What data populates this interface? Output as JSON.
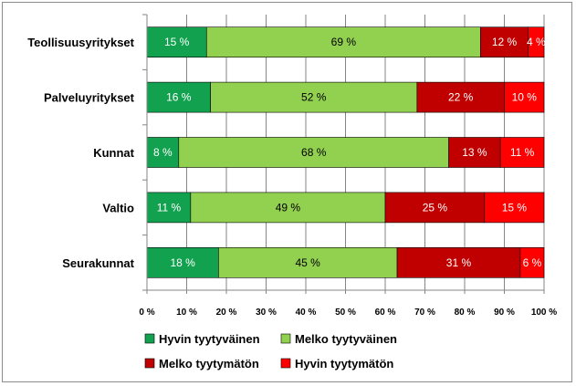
{
  "chart_data": {
    "type": "bar",
    "orientation": "horizontal",
    "stacked": true,
    "percent_stacked": true,
    "categories": [
      "Teollisuusyritykset",
      "Palveluyritykset",
      "Kunnat",
      "Valtio",
      "Seurakunnat"
    ],
    "series": [
      {
        "name": "Hyvin tyytyväinen",
        "color": "#12a24f",
        "values": [
          15,
          16,
          8,
          11,
          18
        ],
        "labels": [
          "15 %",
          "16 %",
          "8 %",
          "11 %",
          "18 %"
        ]
      },
      {
        "name": "Melko tyytyväinen",
        "color": "#92d050",
        "values": [
          69,
          52,
          68,
          49,
          45
        ],
        "labels": [
          "69 %",
          "52 %",
          "68 %",
          "49 %",
          "45 %"
        ]
      },
      {
        "name": "Melko tyytymätön",
        "color": "#c00000",
        "values": [
          12,
          22,
          13,
          25,
          31
        ],
        "labels": [
          "12 %",
          "22 %",
          "13 %",
          "25 %",
          "31 %"
        ]
      },
      {
        "name": "Hyvin tyytymätön",
        "color": "#ff0000",
        "values": [
          4,
          10,
          11,
          15,
          6
        ],
        "labels": [
          "4 %",
          "10 %",
          "11 %",
          "15 %",
          "6 %"
        ]
      }
    ],
    "xlim": [
      0,
      100
    ],
    "x_ticks": [
      "0 %",
      "10 %",
      "20 %",
      "30 %",
      "40 %",
      "50 %",
      "60 %",
      "70 %",
      "80 %",
      "90 %",
      "100 %"
    ],
    "gridlines": true,
    "legend_position": "bottom"
  }
}
